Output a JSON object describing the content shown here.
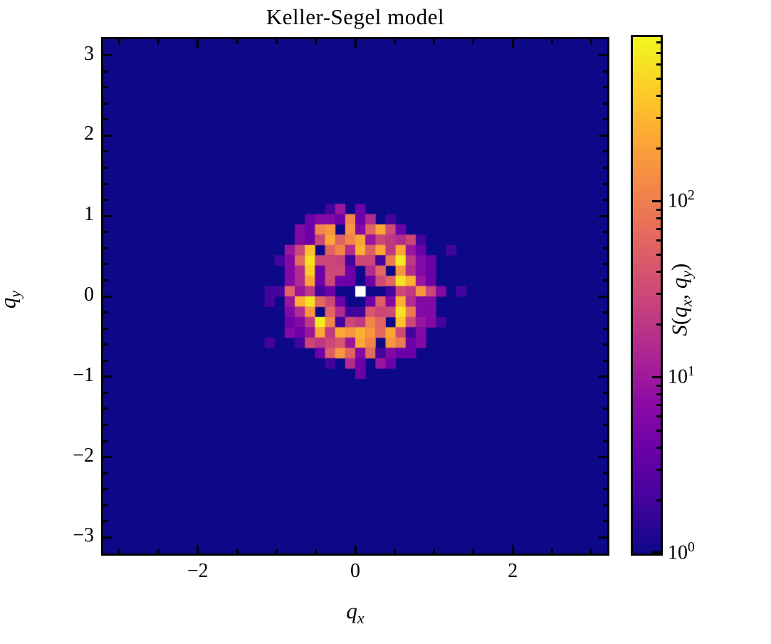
{
  "figure": {
    "title": "Keller-Segel model"
  },
  "chart_data": {
    "type": "heatmap",
    "title": "Keller-Segel model",
    "xlabel": "q_x",
    "ylabel": "q_y",
    "x_range": [
      -3.2,
      3.2
    ],
    "y_range": [
      -3.2,
      3.2
    ],
    "grid_size": 50,
    "x_major_tick_values": [
      -2,
      0,
      2
    ],
    "x_tick_labels": [
      "−2",
      "0",
      "2"
    ],
    "x_minor_step": 0.5,
    "y_major_tick_values": [
      3,
      2,
      1,
      0,
      -1,
      -2,
      -3
    ],
    "y_tick_labels": [
      "3",
      "2",
      "1",
      "0",
      "−1",
      "−2",
      "−3"
    ],
    "y_minor_step": 0.2,
    "colormap": "plasma",
    "scale": "log",
    "vmin": 1,
    "vmax": 800,
    "background_value": 1,
    "center_value": 99999,
    "over_color": "#ffffff",
    "background_color": "#0d0887",
    "colorbar": {
      "label": "S(q_x, q_y)",
      "tick_values": [
        1,
        10,
        100
      ],
      "tick_labels": [
        "10^0",
        "10^1",
        "10^2"
      ],
      "axis_max": 861,
      "minor_tick_values": [
        2,
        3,
        4,
        5,
        6,
        7,
        8,
        9,
        20,
        30,
        40,
        50,
        60,
        70,
        80,
        90,
        200,
        300,
        400,
        500,
        600,
        700,
        800
      ]
    },
    "center_block": {
      "description": "21x21 cell block centered on q=0 cell; rows top(qy=+1.4) to bottom(qy=-1.4); cols qx=-1.4 to +1.4; all other cells = background_value 1; 99999 marks the white over-range center cell",
      "col_start": 15,
      "row_start": 14,
      "values": [
        [
          1,
          1,
          1,
          1,
          1,
          1,
          1,
          1,
          1,
          1,
          1,
          1,
          1,
          1,
          1,
          1,
          1,
          1,
          1,
          1,
          1
        ],
        [
          1,
          1,
          1,
          1,
          1,
          1,
          1,
          1,
          1,
          1,
          1,
          1,
          1,
          1,
          1,
          1,
          1,
          1,
          1,
          1,
          1
        ],
        [
          1,
          1,
          1,
          1,
          1,
          1,
          1,
          2,
          9,
          1,
          4,
          1,
          1,
          1,
          1,
          1,
          1,
          1,
          1,
          1,
          1
        ],
        [
          1,
          1,
          1,
          1,
          1,
          4,
          6,
          6,
          4,
          110,
          4,
          15,
          1,
          2,
          1,
          1,
          1,
          1,
          1,
          1,
          1
        ],
        [
          1,
          1,
          1,
          1,
          6,
          4,
          110,
          150,
          1,
          150,
          6,
          55,
          210,
          30,
          4,
          1,
          1,
          1,
          1,
          1,
          1
        ],
        [
          1,
          1,
          1,
          1,
          6,
          4,
          28,
          210,
          55,
          110,
          210,
          9,
          28,
          20,
          15,
          28,
          2,
          1,
          1,
          1,
          1
        ],
        [
          1,
          1,
          1,
          9,
          28,
          330,
          1,
          55,
          110,
          15,
          250,
          50,
          210,
          20,
          210,
          9,
          4,
          1,
          1,
          2,
          1
        ],
        [
          1,
          1,
          2,
          6,
          65,
          560,
          28,
          28,
          25,
          2,
          28,
          28,
          2,
          90,
          640,
          20,
          6,
          4,
          1,
          1,
          1
        ],
        [
          1,
          1,
          1,
          6,
          15,
          410,
          4,
          30,
          28,
          4,
          1,
          15,
          60,
          1,
          150,
          15,
          6,
          4,
          1,
          1,
          1
        ],
        [
          1,
          1,
          1,
          6,
          15,
          210,
          4,
          30,
          4,
          4,
          1,
          4,
          30,
          60,
          560,
          250,
          9,
          4,
          1,
          1,
          1
        ],
        [
          1,
          2,
          2,
          55,
          9,
          20,
          2,
          4,
          1,
          1,
          99999,
          1,
          1,
          2,
          28,
          20,
          150,
          28,
          6,
          1,
          2
        ],
        [
          1,
          2,
          1,
          9,
          250,
          560,
          60,
          30,
          4,
          1,
          1,
          4,
          50,
          6,
          250,
          15,
          6,
          6,
          1,
          1,
          1
        ],
        [
          1,
          1,
          1,
          6,
          15,
          150,
          1,
          55,
          15,
          2,
          2,
          40,
          28,
          30,
          560,
          90,
          6,
          6,
          1,
          1,
          1
        ],
        [
          1,
          1,
          1,
          4,
          6,
          20,
          640,
          110,
          2,
          28,
          20,
          110,
          55,
          1,
          330,
          28,
          9,
          6,
          2,
          1,
          1
        ],
        [
          1,
          1,
          1,
          6,
          4,
          9,
          210,
          20,
          210,
          150,
          250,
          150,
          60,
          210,
          30,
          2,
          6,
          1,
          1,
          1,
          1
        ],
        [
          1,
          2,
          1,
          1,
          2,
          28,
          20,
          28,
          40,
          9,
          210,
          110,
          1,
          150,
          90,
          4,
          6,
          1,
          1,
          1,
          1
        ],
        [
          1,
          1,
          1,
          1,
          1,
          1,
          4,
          50,
          150,
          55,
          6,
          65,
          2,
          6,
          4,
          4,
          1,
          1,
          1,
          1,
          1
        ],
        [
          1,
          1,
          1,
          1,
          1,
          1,
          1,
          2,
          1,
          15,
          4,
          1,
          9,
          4,
          1,
          1,
          1,
          1,
          1,
          1,
          1
        ],
        [
          1,
          1,
          1,
          1,
          1,
          1,
          1,
          1,
          1,
          1,
          4,
          1,
          1,
          1,
          1,
          1,
          1,
          1,
          1,
          1,
          1
        ],
        [
          1,
          1,
          1,
          1,
          1,
          1,
          1,
          1,
          1,
          1,
          1,
          1,
          1,
          1,
          1,
          1,
          1,
          1,
          1,
          1,
          1
        ],
        [
          1,
          1,
          1,
          1,
          1,
          1,
          1,
          1,
          1,
          1,
          1,
          1,
          1,
          1,
          1,
          1,
          1,
          1,
          1,
          1,
          1
        ]
      ]
    }
  }
}
